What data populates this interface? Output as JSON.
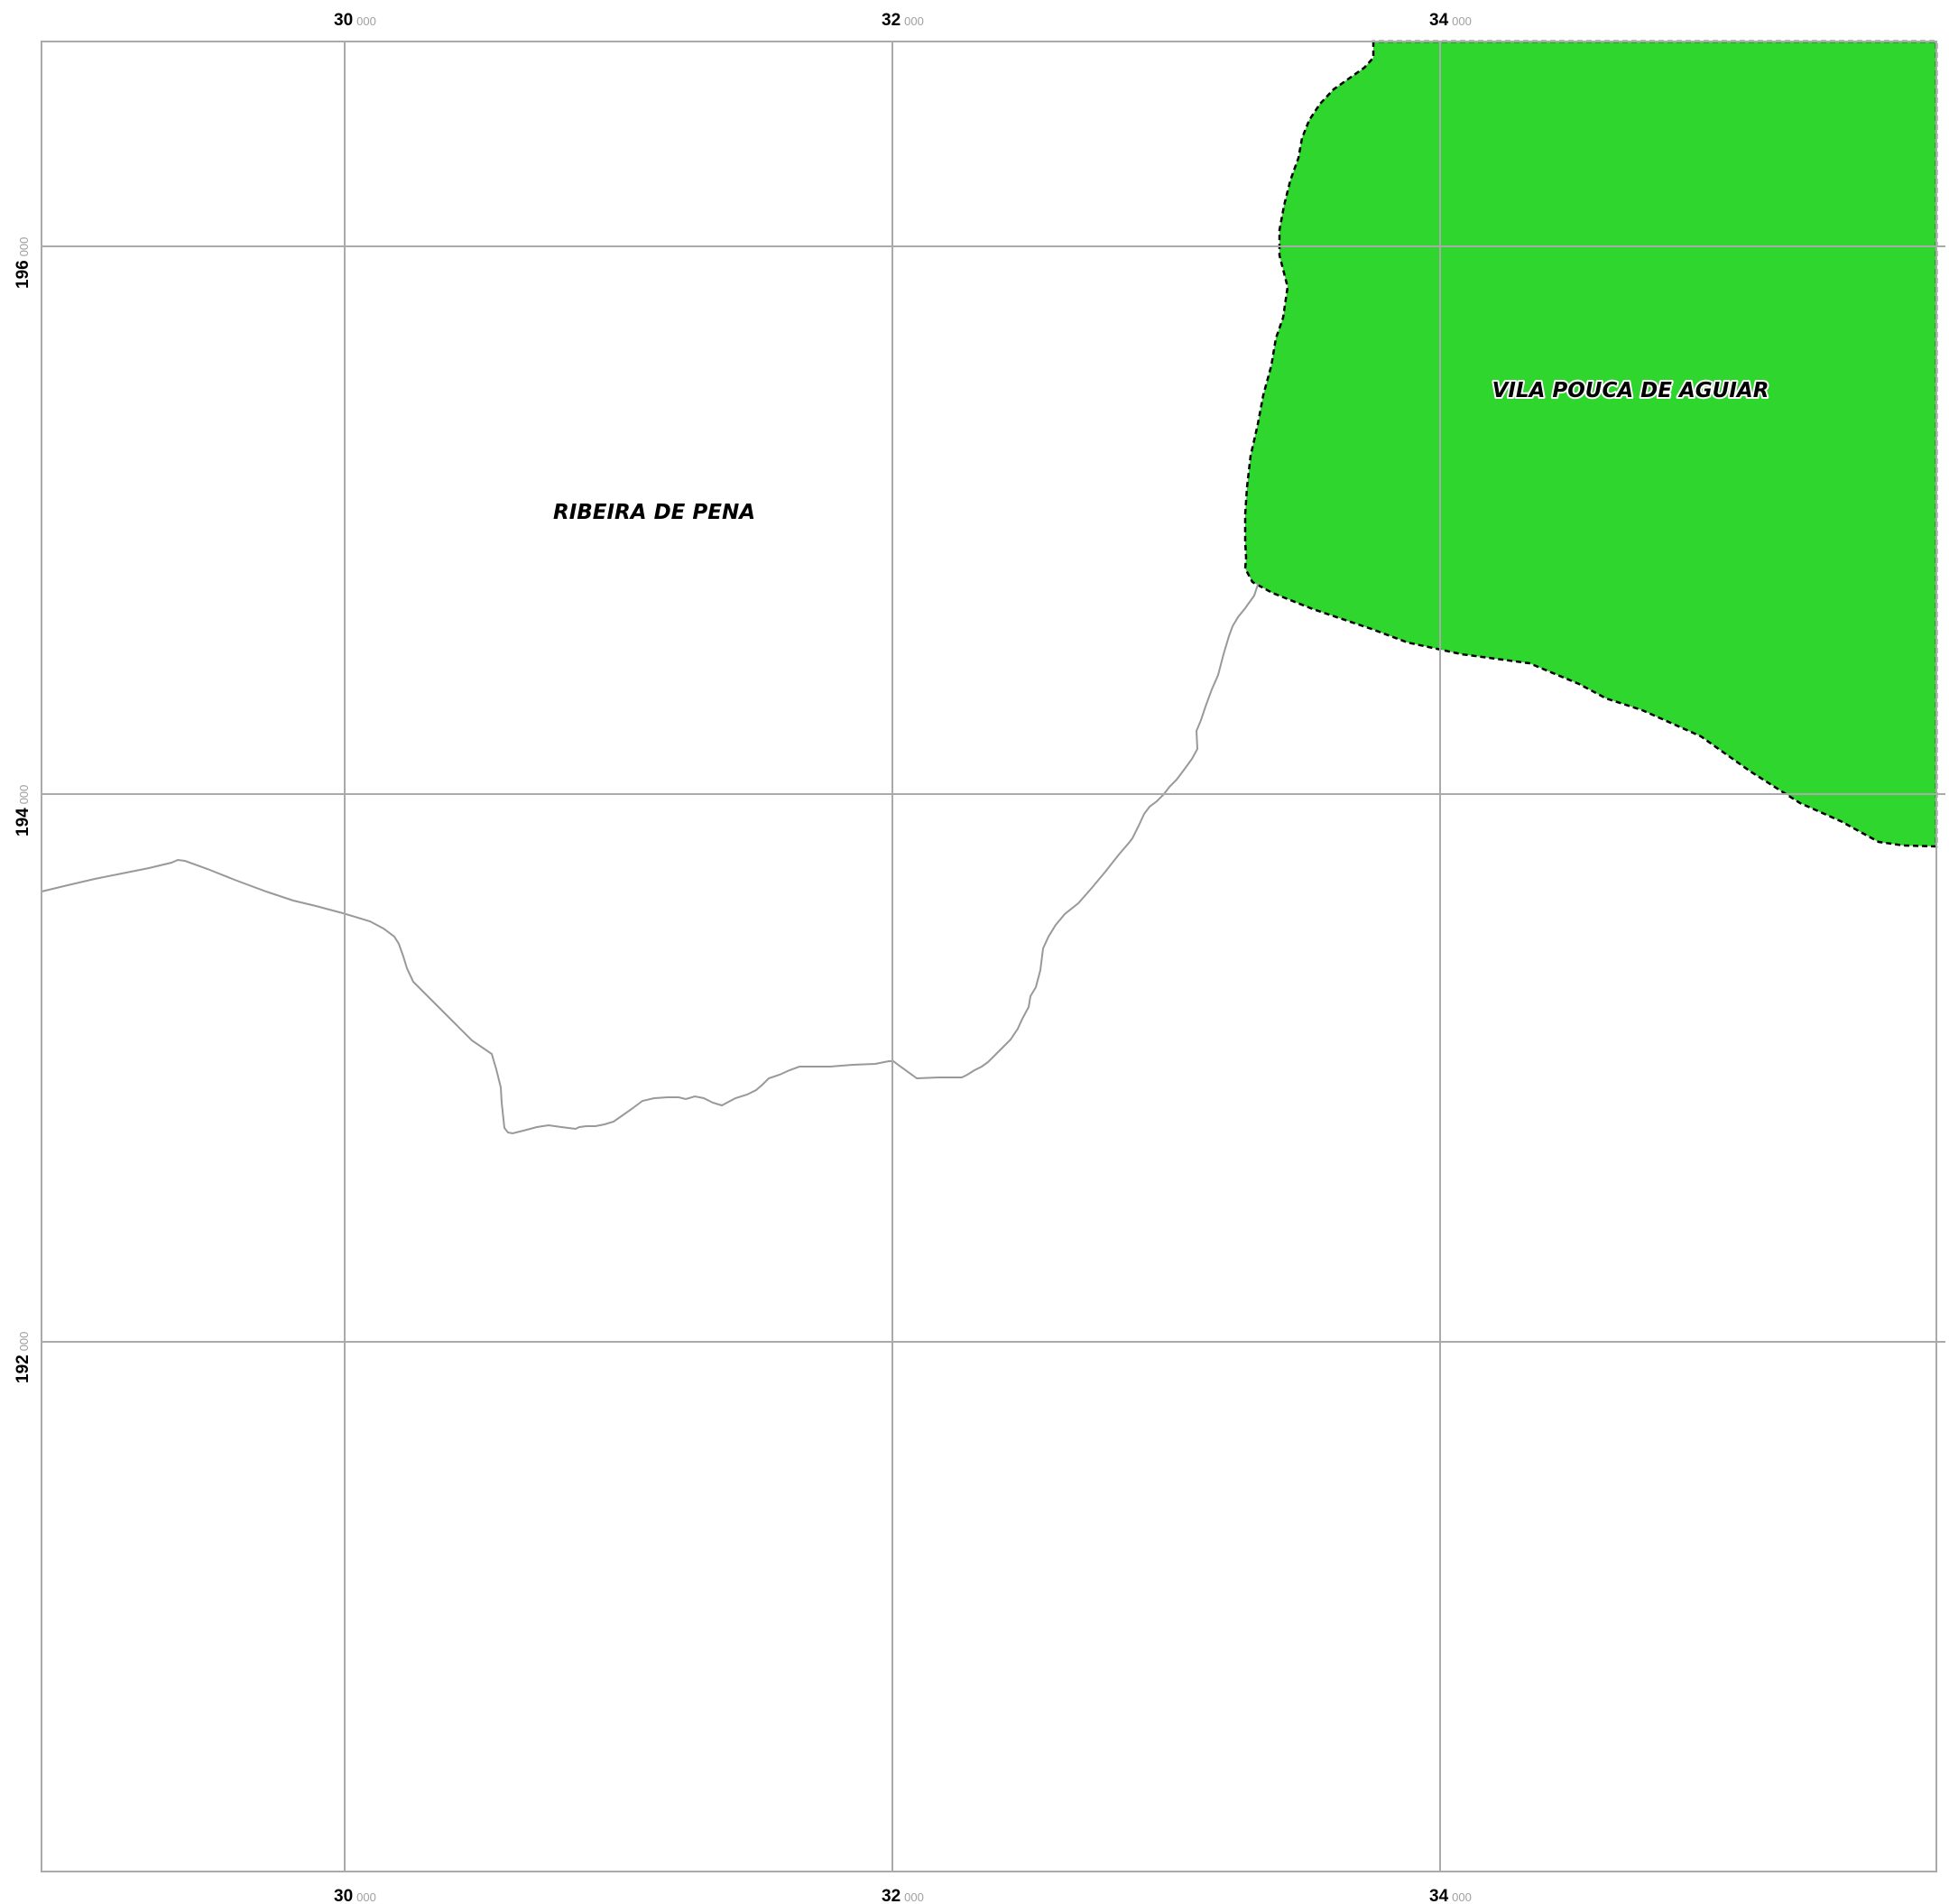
{
  "map": {
    "grid": {
      "x_ticks": [
        {
          "major": "30",
          "minor": "000"
        },
        {
          "major": "32",
          "minor": "000"
        },
        {
          "major": "34",
          "minor": "000"
        }
      ],
      "y_ticks": [
        {
          "major": "196",
          "minor": "000"
        },
        {
          "major": "194",
          "minor": "000"
        },
        {
          "major": "192",
          "minor": "000"
        }
      ],
      "line_color": "#aaaaaa"
    },
    "regions": [
      {
        "name": "RIBEIRA DE PENA",
        "fill": "#ffffff",
        "highlighted": false
      },
      {
        "name": "VILA POUCA DE AGUIAR",
        "fill": "#2ed62e",
        "highlighted": true,
        "border": "dashed"
      }
    ],
    "boundary_color": "#999999",
    "frame_color": "#aaaaaa"
  }
}
